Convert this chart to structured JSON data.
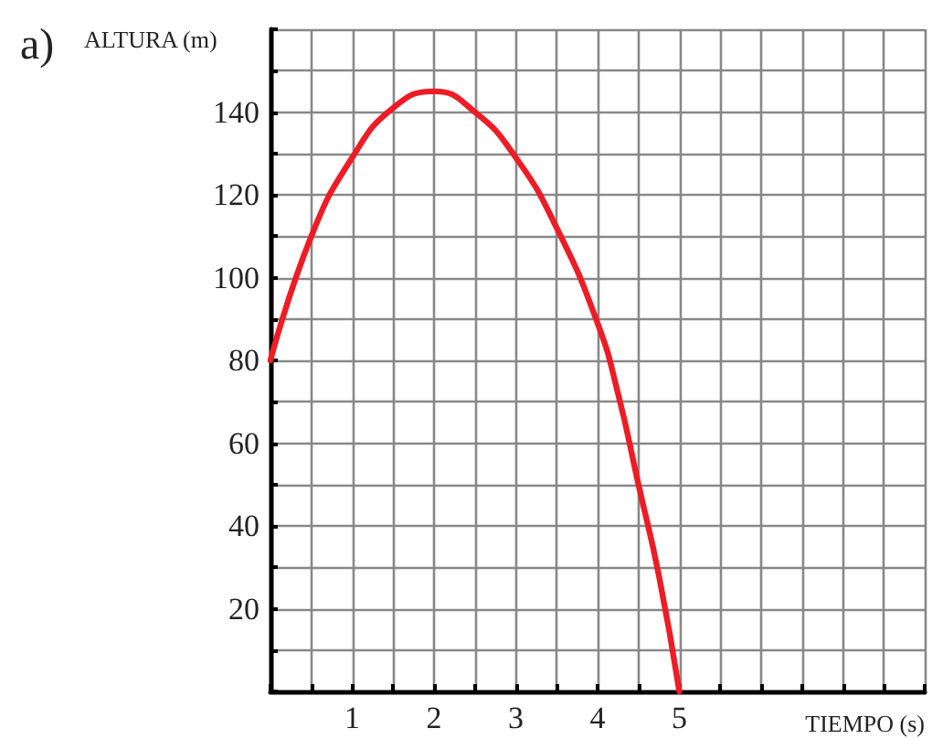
{
  "chart_data": {
    "type": "line",
    "title": "a)",
    "xlabel": "TIEMPO (s)",
    "ylabel": "ALTURA (m)",
    "x": [
      0,
      0.5,
      1,
      1.5,
      2,
      2.5,
      3,
      3.5,
      4,
      4.25,
      4.5,
      4.75,
      5
    ],
    "series": [
      {
        "color": "#ee1c25",
        "values": [
          80,
          110,
          129,
          141,
          145,
          140,
          129,
          112,
          89,
          72,
          50,
          28,
          0
        ]
      }
    ],
    "xlim": [
      0,
      8
    ],
    "xticks": [
      {
        "value": 0,
        "label": null
      },
      {
        "value": 0.5,
        "label": null
      },
      1,
      {
        "value": 1.5,
        "label": null
      },
      2,
      {
        "value": 2.5,
        "label": null
      },
      3,
      {
        "value": 3.5,
        "label": null
      },
      4,
      {
        "value": 4.5,
        "label": null
      },
      5,
      {
        "value": 5.5,
        "label": null
      },
      {
        "value": 6,
        "label": null
      },
      {
        "value": 6.5,
        "label": null
      },
      {
        "value": 7,
        "label": null
      },
      {
        "value": 7.5,
        "label": null
      },
      {
        "value": 8,
        "label": null
      }
    ],
    "ylim": [
      0,
      160
    ],
    "yticks": [
      {
        "value": 0,
        "label": null
      },
      {
        "value": 10,
        "label": null
      },
      20,
      {
        "value": 30,
        "label": null
      },
      40,
      {
        "value": 50,
        "label": null
      },
      60,
      {
        "value": 70,
        "label": null
      },
      80,
      {
        "value": 90,
        "label": null
      },
      100,
      {
        "value": 110,
        "label": null
      },
      120,
      {
        "value": 130,
        "label": null
      },
      140,
      {
        "value": 150,
        "label": null
      },
      {
        "value": 160,
        "label": null
      }
    ],
    "grid": true,
    "marker": "none",
    "line_style": "solid"
  }
}
